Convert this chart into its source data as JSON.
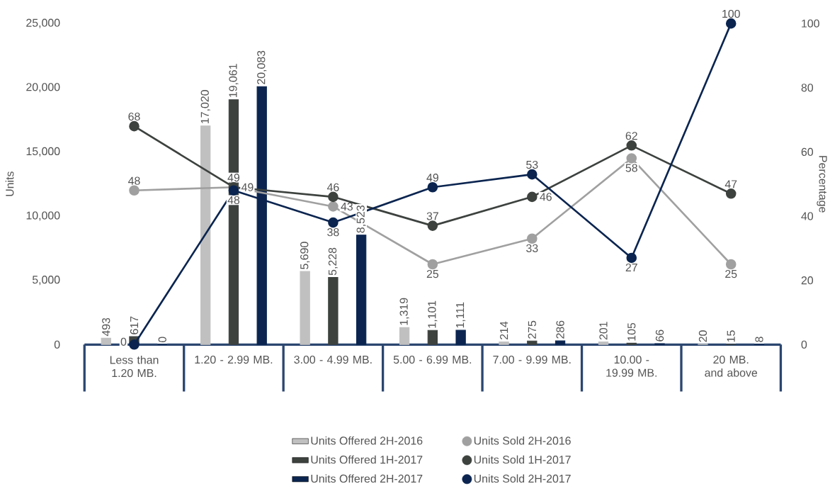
{
  "chart_data": {
    "type": "bar",
    "ylabel": "Units",
    "y2label": "Percentage",
    "categories": [
      "Less than 1.20 MB.",
      "1.20 - 2.99 MB.",
      "3.00 - 4.99 MB.",
      "5.00 - 6.99 MB.",
      "7.00 - 9.99 MB.",
      "10.00 - 19.99 MB.",
      "20 MB. and above"
    ],
    "series": [
      {
        "name": "Units Offered 2H-2016",
        "color": "#c0c0c0",
        "values": [
          493,
          17020,
          5690,
          1319,
          214,
          201,
          20
        ],
        "value_labels": [
          "493",
          "17,020",
          "5,690",
          "1,319",
          "214",
          "201",
          "20"
        ]
      },
      {
        "name": "Units Offered 1H-2017",
        "color": "#3d423f",
        "values": [
          617,
          19061,
          5228,
          1101,
          275,
          105,
          15
        ],
        "value_labels": [
          "617",
          "19,061",
          "5,228",
          "1,101",
          "275",
          "105",
          "15"
        ]
      },
      {
        "name": "Units Offered 2H-2017",
        "color": "#0b2550",
        "values": [
          0,
          20083,
          8523,
          1111,
          286,
          66,
          8
        ],
        "value_labels": [
          "0",
          "20,083",
          "8,523",
          "1,111",
          "286",
          "66",
          "8"
        ]
      },
      {
        "name": "Units Sold 2H-2016",
        "type": "line",
        "axis": "y2",
        "marker": "circle",
        "color": "#a0a0a0",
        "values": [
          48,
          49,
          43,
          25,
          33,
          58,
          25
        ],
        "value_labels": [
          "48",
          "49",
          "43",
          "25",
          "33",
          "58",
          "25"
        ]
      },
      {
        "name": "Units Sold 1H-2017",
        "type": "line",
        "axis": "y2",
        "marker": "circle",
        "color": "#3d423f",
        "values": [
          68,
          49,
          46,
          37,
          46,
          62,
          47
        ],
        "value_labels": [
          "68",
          "49",
          "46",
          "37",
          "46",
          "62",
          "47"
        ]
      },
      {
        "name": "Units Sold 2H-2017",
        "type": "line",
        "axis": "y2",
        "marker": "circle",
        "color": "#0b2550",
        "values": [
          0,
          48,
          38,
          49,
          53,
          27,
          100
        ],
        "value_labels": [
          "0",
          "48",
          "38",
          "49",
          "53",
          "27",
          "100"
        ]
      }
    ],
    "ylim": [
      0,
      25000
    ],
    "yticks": [
      0,
      {
        "value": 5000,
        "label": "5,000"
      },
      {
        "value": 10000,
        "label": "10,000"
      },
      {
        "value": 15000,
        "label": "15,000"
      },
      {
        "value": 20000,
        "label": "20,000"
      },
      {
        "value": 25000,
        "label": "25,000"
      }
    ],
    "y2lim": [
      0,
      100
    ],
    "y2ticks": [
      0,
      20,
      40,
      60,
      80,
      100
    ],
    "legend": "bottom"
  }
}
